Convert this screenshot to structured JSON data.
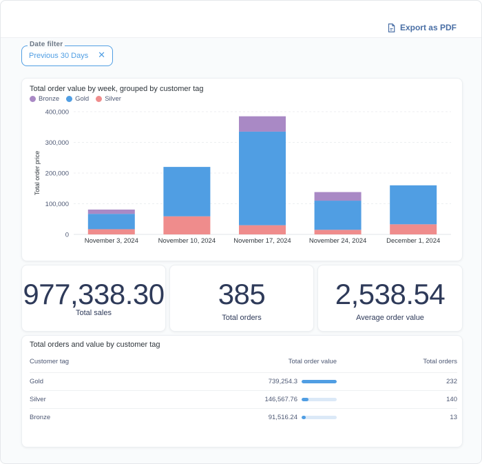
{
  "header": {
    "export_label": "Export as PDF"
  },
  "filter": {
    "label": "Date filter",
    "value": "Previous 30 Days"
  },
  "chart_card": {
    "title": "Total order value by week, grouped by customer tag"
  },
  "chart_data": {
    "type": "bar",
    "stacked": true,
    "title": "Total order value by week, grouped by customer tag",
    "xlabel": "",
    "ylabel": "Total order price",
    "categories": [
      "November 3, 2024",
      "November 10, 2024",
      "November 17, 2024",
      "November 24, 2024",
      "December 1, 2024"
    ],
    "series": [
      {
        "name": "Silver",
        "color": "#ef8c8c",
        "values": [
          17000,
          59000,
          30000,
          15000,
          33000
        ]
      },
      {
        "name": "Gold",
        "color": "#509ee3",
        "values": [
          50000,
          161000,
          305000,
          95000,
          127000
        ]
      },
      {
        "name": "Bronze",
        "color": "#a989c5",
        "values": [
          14000,
          0,
          50000,
          28000,
          0
        ]
      }
    ],
    "legend": [
      "Bronze",
      "Gold",
      "Silver"
    ],
    "ylim": [
      0,
      400000
    ],
    "yticks": [
      "0",
      "100,000",
      "200,000",
      "300,000",
      "400,000"
    ],
    "ytick_values": [
      0,
      100000,
      200000,
      300000,
      400000
    ],
    "grid": true
  },
  "scalars": [
    {
      "value": "977,338.30",
      "label": "Total sales"
    },
    {
      "value": "385",
      "label": "Total orders"
    },
    {
      "value": "2,538.54",
      "label": "Average order value"
    }
  ],
  "table": {
    "title": "Total orders and value by customer tag",
    "headers": [
      "Customer tag",
      "Total order value",
      "Total orders"
    ],
    "rows": [
      {
        "tag": "Gold",
        "value": "739,254.3",
        "fraction": 1.0,
        "orders": "232"
      },
      {
        "tag": "Silver",
        "value": "146,567.76",
        "fraction": 0.198,
        "orders": "140"
      },
      {
        "tag": "Bronze",
        "value": "91,516.24",
        "fraction": 0.124,
        "orders": "13"
      }
    ]
  },
  "colors": {
    "accent": "#509ee3",
    "text_dark": "#2e3a59"
  }
}
